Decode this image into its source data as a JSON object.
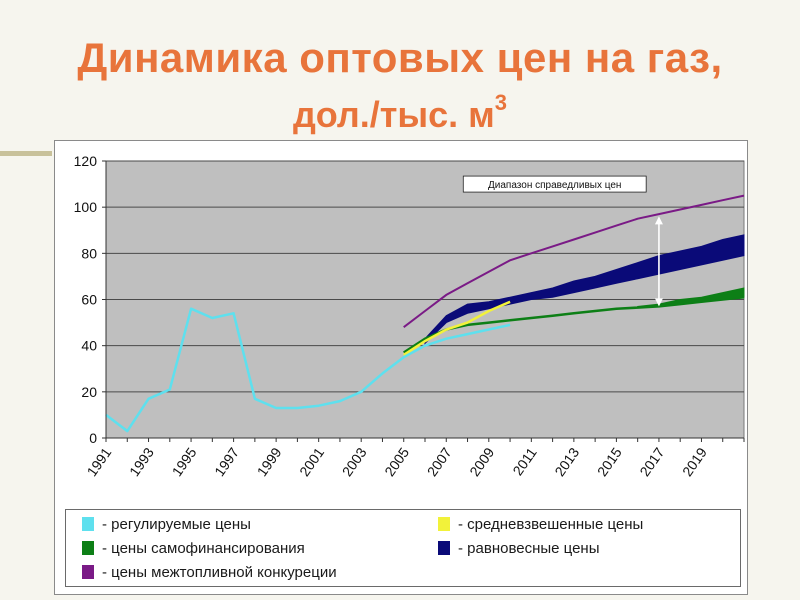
{
  "title_line1": "Динамика оптовых цен на газ,",
  "title_line2": "дол./тыс. м",
  "title_sup": "3",
  "colors": {
    "background": "#f6f5ee",
    "title": "#e8743b",
    "plot_area": "#bfbfbf",
    "regulated": "#5ee0ee",
    "self_financing": "#0d7f16",
    "inter_fuel": "#7a1a86",
    "weighted": "#f2f23a",
    "equilibrium": "#0a0a78"
  },
  "chart_data": {
    "type": "line",
    "title": "",
    "xlabel": "",
    "ylabel": "",
    "xlim": [
      1991,
      2021
    ],
    "ylim": [
      0,
      120
    ],
    "yticks": [
      0,
      20,
      40,
      60,
      80,
      100,
      120
    ],
    "xticks": [
      "1991",
      "1993",
      "1995",
      "1997",
      "1999",
      "2001",
      "2003",
      "2005",
      "2007",
      "2009",
      "2011",
      "2013",
      "2015",
      "2017",
      "2019"
    ],
    "grid": true,
    "annotation": {
      "text": "Диапазон справедливых цен",
      "x": 2017,
      "range": [
        57,
        96
      ]
    },
    "series": [
      {
        "name": "- регулируемые цены",
        "key": "regulated",
        "style": "line",
        "points": [
          [
            1991,
            10
          ],
          [
            1992,
            3
          ],
          [
            1993,
            17
          ],
          [
            1994,
            21
          ],
          [
            1995,
            56
          ],
          [
            1996,
            52
          ],
          [
            1997,
            54
          ],
          [
            1998,
            17
          ],
          [
            1999,
            13
          ],
          [
            2000,
            13
          ],
          [
            2001,
            14
          ],
          [
            2002,
            16
          ],
          [
            2003,
            20
          ],
          [
            2004,
            28
          ],
          [
            2005,
            35
          ],
          [
            2006,
            40
          ],
          [
            2007,
            43
          ],
          [
            2008,
            45
          ],
          [
            2009,
            47
          ],
          [
            2010,
            49
          ]
        ]
      },
      {
        "name": "- средневзвешенные цены",
        "key": "weighted",
        "style": "line",
        "points": [
          [
            2005,
            36
          ],
          [
            2006,
            42
          ],
          [
            2007,
            47
          ],
          [
            2008,
            50
          ],
          [
            2009,
            55
          ],
          [
            2010,
            59
          ]
        ]
      },
      {
        "name": "- цены самофинансирования",
        "key": "self_financing",
        "style": "band",
        "points": [
          [
            2005,
            37
          ],
          [
            2006,
            43
          ],
          [
            2007,
            47
          ],
          [
            2008,
            49
          ],
          [
            2009,
            50
          ],
          [
            2010,
            51
          ],
          [
            2011,
            52
          ],
          [
            2012,
            53
          ],
          [
            2013,
            54
          ],
          [
            2014,
            55
          ],
          [
            2015,
            56
          ],
          [
            2016,
            56.5
          ],
          [
            2017,
            57
          ],
          [
            2018,
            58
          ],
          [
            2019,
            59
          ],
          [
            2020,
            60
          ],
          [
            2021,
            61
          ]
        ],
        "upper": [
          [
            2016,
            57
          ],
          [
            2017,
            58
          ],
          [
            2018,
            60
          ],
          [
            2019,
            61
          ],
          [
            2020,
            63
          ],
          [
            2021,
            65
          ]
        ]
      },
      {
        "name": "- равновесные цены",
        "key": "equilibrium",
        "style": "band",
        "lower": [
          [
            2006,
            41
          ],
          [
            2007,
            50
          ],
          [
            2008,
            54
          ],
          [
            2009,
            56
          ],
          [
            2010,
            58
          ],
          [
            2011,
            60
          ],
          [
            2012,
            61
          ],
          [
            2013,
            63
          ],
          [
            2014,
            65
          ],
          [
            2015,
            67
          ],
          [
            2016,
            69
          ],
          [
            2017,
            71
          ],
          [
            2018,
            73
          ],
          [
            2019,
            75
          ],
          [
            2020,
            77
          ],
          [
            2021,
            79
          ]
        ],
        "upper": [
          [
            2006,
            43
          ],
          [
            2007,
            53
          ],
          [
            2008,
            58
          ],
          [
            2009,
            59
          ],
          [
            2010,
            61
          ],
          [
            2011,
            63
          ],
          [
            2012,
            65
          ],
          [
            2013,
            68
          ],
          [
            2014,
            70
          ],
          [
            2015,
            73
          ],
          [
            2016,
            76
          ],
          [
            2017,
            79
          ],
          [
            2018,
            81
          ],
          [
            2019,
            83
          ],
          [
            2020,
            86
          ],
          [
            2021,
            88
          ]
        ]
      },
      {
        "name": "- цены межтопливной конкуреции",
        "key": "inter_fuel",
        "style": "line",
        "points": [
          [
            2005,
            48
          ],
          [
            2006,
            55
          ],
          [
            2007,
            62
          ],
          [
            2008,
            67
          ],
          [
            2009,
            72
          ],
          [
            2010,
            77
          ],
          [
            2011,
            80
          ],
          [
            2012,
            83
          ],
          [
            2013,
            86
          ],
          [
            2014,
            89
          ],
          [
            2015,
            92
          ],
          [
            2016,
            95
          ],
          [
            2017,
            97
          ],
          [
            2018,
            99
          ],
          [
            2019,
            101
          ],
          [
            2020,
            103
          ],
          [
            2021,
            105
          ]
        ]
      }
    ]
  },
  "legend": {
    "regulated": "- регулируемые цены",
    "weighted": "- средневзвешенные цены",
    "self_financing": "- цены самофинансирования",
    "equilibrium": "- равновесные цены",
    "inter_fuel": "- цены межтопливной конкуреции"
  }
}
